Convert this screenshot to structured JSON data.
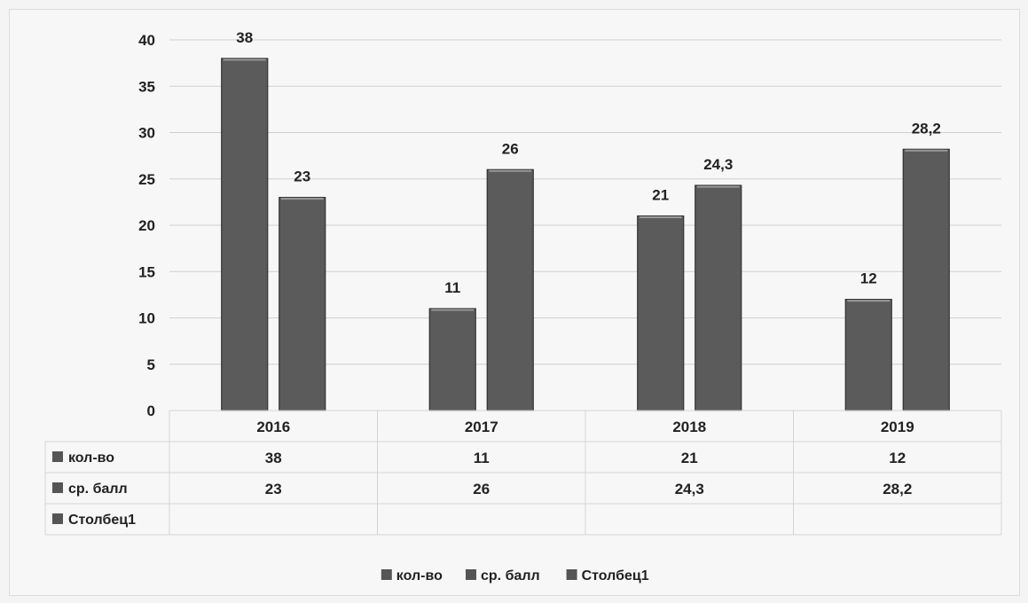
{
  "chart_data": {
    "type": "bar",
    "categories": [
      "2016",
      "2017",
      "2018",
      "2019"
    ],
    "series": [
      {
        "name": "кол-во",
        "values": [
          38,
          11,
          21,
          12
        ],
        "labels": [
          "38",
          "11",
          "21",
          "12"
        ]
      },
      {
        "name": "ср. балл",
        "values": [
          23,
          26,
          24.3,
          28.2
        ],
        "labels": [
          "23",
          "26",
          "24,3",
          "28,2"
        ]
      },
      {
        "name": "Столбец1",
        "values": [
          null,
          null,
          null,
          null
        ],
        "labels": [
          "",
          "",
          "",
          ""
        ]
      }
    ],
    "ylim": [
      0,
      40
    ],
    "yticks": [
      0,
      5,
      10,
      15,
      20,
      25,
      30,
      35,
      40
    ],
    "grid": true,
    "legend_position": "bottom",
    "data_table": true,
    "title": "",
    "xlabel": "",
    "ylabel": ""
  },
  "colors": {
    "bar_fill": "#5b5b5b",
    "bar_edge": "#333333",
    "grid": "#cfcfcf",
    "table_border": "#d4d4d4",
    "legend_key": "#555555"
  }
}
